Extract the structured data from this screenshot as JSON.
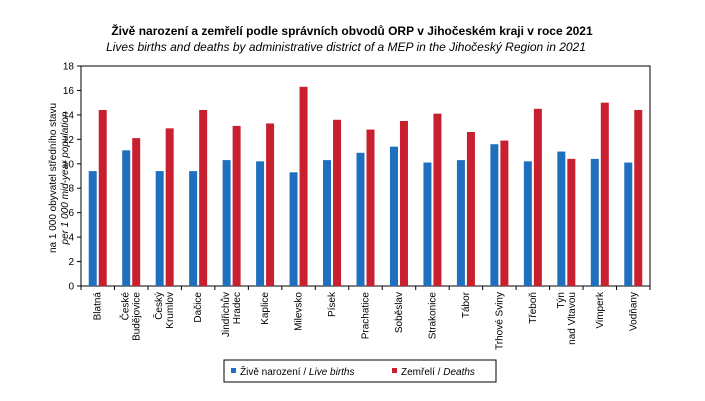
{
  "chart_data": {
    "type": "bar",
    "title": "Živě narození a zemřelí podle správních obvodů ORP v Jihočeském kraji v roce 2021",
    "subtitle": "Lives births and deaths by administrative district of a MEP in the Jihočeský Region in 2021",
    "ylabel": "na 1 000 obyvatel středního stavu",
    "ylabel_en": "per 1 000  mid-year population",
    "ylim": [
      0,
      18
    ],
    "yticks": [
      0,
      2,
      4,
      6,
      8,
      10,
      12,
      14,
      16,
      18
    ],
    "grid": false,
    "legend_position": "bottom",
    "categories": [
      [
        "Blatná"
      ],
      [
        "České",
        "Budějovice"
      ],
      [
        "Český",
        "Krumlov"
      ],
      [
        "Dačice"
      ],
      [
        "Jindřichův",
        "Hradec"
      ],
      [
        "Kaplice"
      ],
      [
        "Milevsko"
      ],
      [
        "Písek"
      ],
      [
        "Prachatice"
      ],
      [
        "Soběslav"
      ],
      [
        "Strakonice"
      ],
      [
        "Tábor"
      ],
      [
        "Trhové Sviny"
      ],
      [
        "Třeboň"
      ],
      [
        "Týn",
        "nad Vltavou"
      ],
      [
        "Vimperk"
      ],
      [
        "Vodňany"
      ]
    ],
    "series": [
      {
        "name": "Živě narození / ",
        "name_en": "Live births",
        "color": "#1f6fbf",
        "values": [
          9.4,
          11.1,
          9.4,
          9.4,
          10.3,
          10.2,
          9.3,
          10.3,
          10.9,
          11.4,
          10.1,
          10.3,
          11.6,
          10.2,
          11.0,
          10.4,
          10.1
        ]
      },
      {
        "name": "Zemřelí / ",
        "name_en": "Deaths",
        "color": "#c8202f",
        "values": [
          14.4,
          12.1,
          12.9,
          14.4,
          13.1,
          13.3,
          16.3,
          13.6,
          12.8,
          13.5,
          14.1,
          12.6,
          11.9,
          14.5,
          10.4,
          15.0,
          14.4
        ]
      }
    ]
  }
}
